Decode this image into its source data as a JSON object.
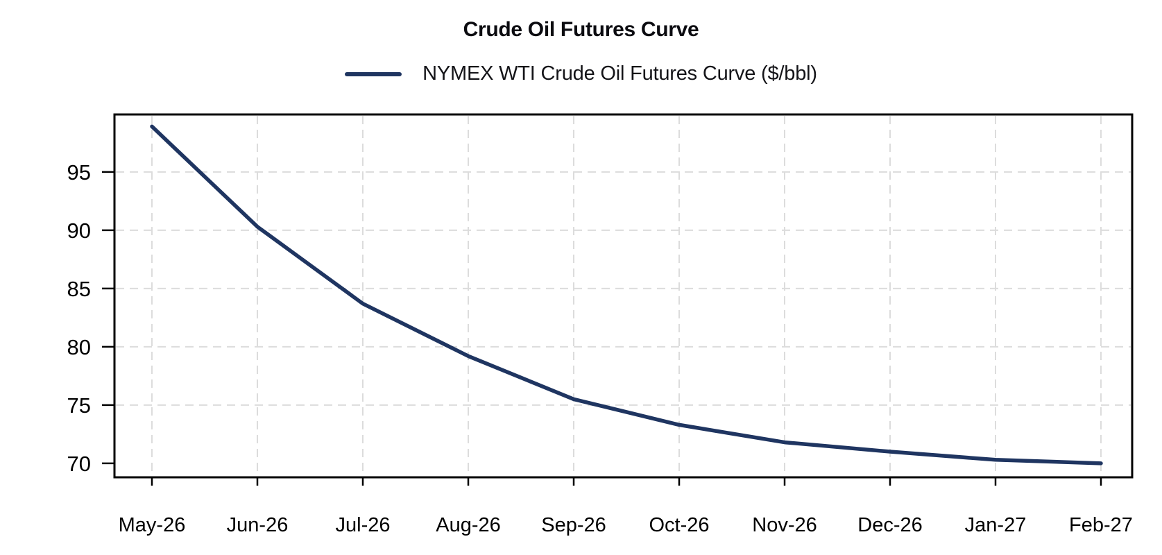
{
  "header": {
    "title": "Crude Oil Futures Curve",
    "legend": {
      "label": "NYMEX WTI Crude Oil Futures Curve ($/bbl)",
      "swatch_color": "#1f3561"
    }
  },
  "chart_data": {
    "type": "line",
    "title": "Crude Oil Futures Curve",
    "legend": [
      "NYMEX WTI Crude Oil Futures Curve ($/bbl)"
    ],
    "legend_position": "top",
    "categories": [
      "May-26",
      "Jun-26",
      "Jul-26",
      "Aug-26",
      "Sep-26",
      "Oct-26",
      "Nov-26",
      "Dec-26",
      "Jan-27",
      "Feb-27"
    ],
    "values": [
      98.9,
      90.3,
      83.7,
      79.2,
      75.5,
      73.3,
      71.8,
      71.0,
      70.3,
      70.0
    ],
    "xlabel": "",
    "ylabel": "",
    "yticks": [
      70,
      75,
      80,
      85,
      90,
      95
    ],
    "grid_yticks": [
      75,
      80,
      85,
      90,
      95
    ],
    "ylim": [
      68.8,
      99.93
    ],
    "grid": true,
    "line_color": "#1f3561",
    "grid_color": "#dcdcdc",
    "axis_color": "#000000"
  }
}
